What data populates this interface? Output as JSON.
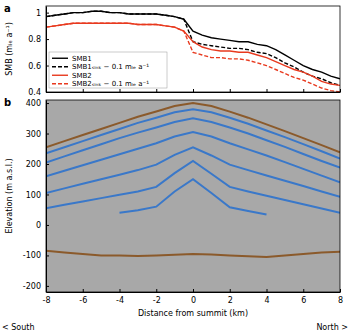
{
  "chart_data": [
    {
      "type": "line",
      "title": "a",
      "ylabel": "SMB (mᵢₑ a⁻¹)",
      "x": [
        -8,
        -7.5,
        -7,
        -6.5,
        -6,
        -5.5,
        -5,
        -4.5,
        -4,
        -3.5,
        -3,
        -2.5,
        -2,
        -1.5,
        -1,
        -0.5,
        0,
        0.5,
        1,
        1.5,
        2,
        2.5,
        3,
        3.5,
        4,
        4.5,
        5,
        5.5,
        6,
        6.5,
        7,
        7.5,
        8
      ],
      "xlim": [
        -8,
        8
      ],
      "xticks": [
        -8,
        -6,
        -4,
        -2,
        0,
        2,
        4,
        6,
        8
      ],
      "ylim": [
        0.4,
        1.05
      ],
      "yticks": [
        0.4,
        0.6,
        0.8,
        1
      ],
      "tick_labels": "y",
      "legend": "lower left",
      "series": [
        {
          "name": "SMB1",
          "color": "#000000",
          "line_style": "solid",
          "values": [
            0.97,
            0.98,
            0.99,
            1.0,
            1.0,
            1.01,
            1.01,
            1.0,
            1.0,
            0.99,
            0.99,
            0.99,
            0.99,
            0.98,
            0.97,
            0.95,
            0.86,
            0.83,
            0.81,
            0.8,
            0.79,
            0.78,
            0.78,
            0.76,
            0.75,
            0.72,
            0.68,
            0.64,
            0.6,
            0.57,
            0.55,
            0.52,
            0.5
          ]
        },
        {
          "name": "SMB1ₛᵢₙₖ − 0.1 mᵢₑ a⁻¹",
          "color": "#000000",
          "line_style": "dashed",
          "values": [
            0.97,
            0.98,
            0.99,
            1.0,
            1.0,
            1.01,
            1.01,
            1.0,
            1.0,
            0.99,
            0.99,
            0.99,
            0.99,
            0.98,
            0.97,
            0.95,
            0.78,
            0.76,
            0.75,
            0.74,
            0.73,
            0.73,
            0.72,
            0.7,
            0.69,
            0.66,
            0.62,
            0.59,
            0.55,
            0.52,
            0.5,
            0.47,
            0.45
          ]
        },
        {
          "name": "SMB2",
          "color": "#e8391e",
          "line_style": "solid",
          "values": [
            0.89,
            0.9,
            0.91,
            0.92,
            0.92,
            0.92,
            0.92,
            0.92,
            0.92,
            0.92,
            0.91,
            0.91,
            0.91,
            0.9,
            0.89,
            0.86,
            0.78,
            0.74,
            0.72,
            0.71,
            0.71,
            0.7,
            0.7,
            0.68,
            0.66,
            0.63,
            0.6,
            0.57,
            0.55,
            0.52,
            0.48,
            0.46,
            0.45
          ]
        },
        {
          "name": "SMB2ₛᵢₙₖ − 0.1 mᵢₑ a⁻¹",
          "color": "#e8391e",
          "line_style": "dashed",
          "values": [
            0.89,
            0.9,
            0.91,
            0.92,
            0.92,
            0.92,
            0.92,
            0.92,
            0.92,
            0.92,
            0.91,
            0.91,
            0.91,
            0.9,
            0.89,
            0.86,
            0.7,
            0.68,
            0.66,
            0.66,
            0.65,
            0.65,
            0.64,
            0.62,
            0.6,
            0.57,
            0.54,
            0.51,
            0.49,
            0.46,
            0.43,
            0.41,
            0.4
          ]
        }
      ]
    },
    {
      "type": "line",
      "title": "b",
      "xlabel": "Distance from summit (km)",
      "ylabel": "Elevation (m a.s.l.)",
      "annotations": [
        "< South",
        "North >"
      ],
      "x": [
        -8,
        -7,
        -6,
        -5,
        -4,
        -3,
        -2,
        -1,
        0,
        1,
        2,
        3,
        4,
        5,
        6,
        7,
        8
      ],
      "xlim": [
        -8,
        8
      ],
      "xticks": [
        -8,
        -6,
        -4,
        -2,
        0,
        2,
        4,
        6,
        8
      ],
      "ylim": [
        -220,
        410
      ],
      "yticks": [
        -200,
        -100,
        0,
        100,
        200,
        300,
        400
      ],
      "series": [
        {
          "color": "#8b5a2b",
          "values": [
            255,
            275,
            295,
            315,
            335,
            355,
            372,
            390,
            400,
            390,
            372,
            352,
            330,
            308,
            285,
            262,
            238
          ]
        },
        {
          "color": "#3a78c9",
          "values": [
            235,
            255,
            275,
            295,
            315,
            335,
            352,
            370,
            380,
            370,
            352,
            332,
            310,
            288,
            265,
            242,
            218
          ]
        },
        {
          "color": "#3a78c9",
          "values": [
            205,
            225,
            245,
            265,
            285,
            303,
            320,
            338,
            350,
            338,
            320,
            300,
            278,
            256,
            233,
            210,
            188
          ]
        },
        {
          "color": "#3a78c9",
          "values": [
            160,
            178,
            196,
            214,
            232,
            250,
            268,
            290,
            305,
            290,
            268,
            248,
            228,
            206,
            184,
            162,
            140
          ]
        },
        {
          "color": "#3a78c9",
          "values": [
            105,
            120,
            135,
            150,
            165,
            180,
            198,
            230,
            255,
            228,
            198,
            180,
            162,
            145,
            128,
            110,
            92
          ]
        },
        {
          "color": "#3a78c9",
          "values": [
            55,
            66,
            77,
            88,
            99,
            110,
            125,
            170,
            210,
            168,
            125,
            110,
            96,
            82,
            68,
            54,
            40
          ]
        },
        {
          "color": "#3a78c9",
          "values": [
            null,
            null,
            null,
            null,
            40,
            48,
            60,
            110,
            150,
            105,
            58,
            46,
            34,
            null,
            null,
            null,
            null
          ]
        },
        {
          "color": "#8b5a2b",
          "values": [
            -85,
            -90,
            -95,
            -100,
            -100,
            -102,
            -100,
            -98,
            -95,
            -97,
            -100,
            -103,
            -105,
            -100,
            -95,
            -90,
            -88
          ]
        }
      ]
    }
  ]
}
